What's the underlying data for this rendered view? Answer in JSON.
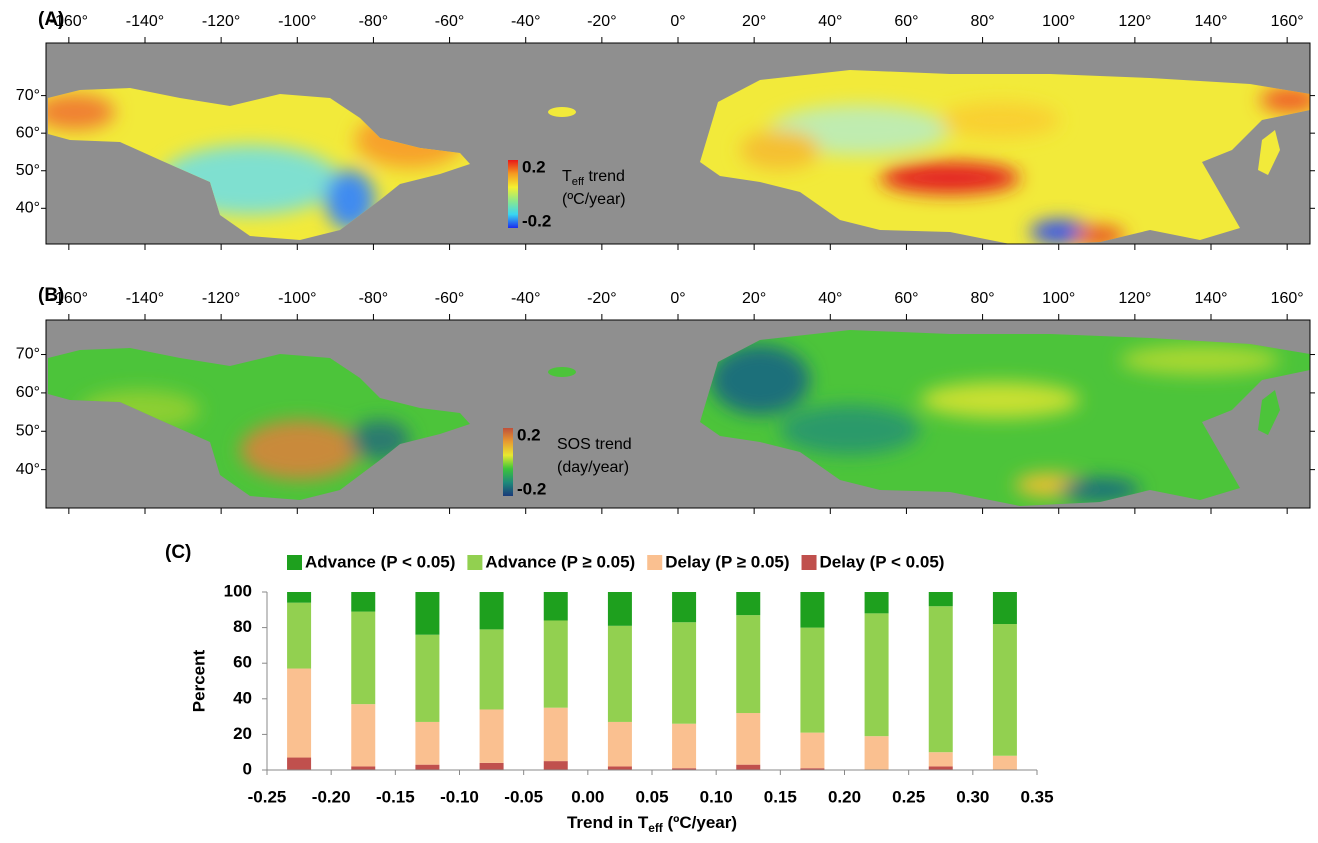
{
  "chart_data": [
    {
      "type": "map",
      "panel_label": "(A)",
      "xlim": [
        -166,
        166
      ],
      "ylim": [
        30.5,
        84
      ],
      "xticks": [
        {
          "value": -160,
          "label": "-160°"
        },
        {
          "value": -140,
          "label": "-140°"
        },
        {
          "value": -120,
          "label": "-120°"
        },
        {
          "value": -100,
          "label": "-100°"
        },
        {
          "value": -80,
          "label": "-80°"
        },
        {
          "value": -60,
          "label": "-60°"
        },
        {
          "value": -40,
          "label": "-40°"
        },
        {
          "value": -20,
          "label": "-20°"
        },
        {
          "value": 0,
          "label": "0°"
        },
        {
          "value": 20,
          "label": "20°"
        },
        {
          "value": 40,
          "label": "40°"
        },
        {
          "value": 60,
          "label": "60°"
        },
        {
          "value": 80,
          "label": "80°"
        },
        {
          "value": 100,
          "label": "100°"
        },
        {
          "value": 120,
          "label": "120°"
        },
        {
          "value": 140,
          "label": "140°"
        },
        {
          "value": 160,
          "label": "160°"
        }
      ],
      "yticks": [
        {
          "value": 40,
          "label": "40°"
        },
        {
          "value": 50,
          "label": "50°"
        },
        {
          "value": 60,
          "label": "60°"
        },
        {
          "value": 70,
          "label": "70°"
        }
      ],
      "colorbar": {
        "title": {
          "main": "T",
          "sub": "eff",
          "rest": " trend"
        },
        "unit": "(ºC/year)",
        "lim": [
          -0.2,
          0.2
        ],
        "ticks": [
          -0.2,
          0.2
        ],
        "colors": [
          "#1b2cf0",
          "#39d6f2",
          "#8de88a",
          "#f5f030",
          "#f59a20",
          "#e81818"
        ]
      }
    },
    {
      "type": "map",
      "panel_label": "(B)",
      "xlim": [
        -166,
        166
      ],
      "ylim": [
        30,
        79
      ],
      "xticks": [
        {
          "value": -160,
          "label": "-160°"
        },
        {
          "value": -140,
          "label": "-140°"
        },
        {
          "value": -120,
          "label": "-120°"
        },
        {
          "value": -100,
          "label": "-100°"
        },
        {
          "value": -80,
          "label": "-80°"
        },
        {
          "value": -60,
          "label": "-60°"
        },
        {
          "value": -40,
          "label": "-40°"
        },
        {
          "value": -20,
          "label": "-20°"
        },
        {
          "value": 0,
          "label": "0°"
        },
        {
          "value": 20,
          "label": "20°"
        },
        {
          "value": 40,
          "label": "40°"
        },
        {
          "value": 60,
          "label": "60°"
        },
        {
          "value": 80,
          "label": "80°"
        },
        {
          "value": 100,
          "label": "100°"
        },
        {
          "value": 120,
          "label": "120°"
        },
        {
          "value": 140,
          "label": "140°"
        },
        {
          "value": 160,
          "label": "160°"
        }
      ],
      "yticks": [
        {
          "value": 40,
          "label": "40°"
        },
        {
          "value": 50,
          "label": "50°"
        },
        {
          "value": 60,
          "label": "60°"
        },
        {
          "value": 70,
          "label": "70°"
        }
      ],
      "colorbar": {
        "title": "SOS trend",
        "unit": "(day/year)",
        "lim": [
          -0.2,
          0.2
        ],
        "ticks": [
          -0.2,
          0.2
        ],
        "colors": [
          "#1a3a7a",
          "#1f8a7a",
          "#3cc43a",
          "#e8e830",
          "#e89a30",
          "#c0503a"
        ]
      }
    },
    {
      "type": "bar",
      "stacked": true,
      "panel_label": "(C)",
      "x": [
        -0.225,
        -0.175,
        -0.125,
        -0.075,
        -0.025,
        0.025,
        0.075,
        0.125,
        0.175,
        0.225,
        0.275,
        0.325
      ],
      "series": [
        {
          "name": "Advance (P < 0.05)",
          "color": "#1ea01e",
          "values": [
            6,
            11,
            24,
            21,
            16,
            19,
            17,
            13,
            20,
            12,
            8,
            18
          ]
        },
        {
          "name": "Advance (P ≥ 0.05)",
          "color": "#92d050",
          "values": [
            37,
            52,
            49,
            45,
            49,
            54,
            57,
            55,
            59,
            69,
            82,
            74
          ]
        },
        {
          "name": "Delay (P ≥ 0.05)",
          "color": "#fac090",
          "values": [
            50,
            35,
            24,
            30,
            30,
            25,
            25,
            29,
            20,
            19,
            8,
            8
          ]
        },
        {
          "name": "Delay (P < 0.05)",
          "color": "#c0504d",
          "values": [
            7,
            2,
            3,
            4,
            5,
            2,
            1,
            3,
            1,
            0,
            2,
            0
          ]
        }
      ],
      "xlim": [
        -0.25,
        0.35
      ],
      "xticks": [
        {
          "value": -0.25,
          "label": "-0.25"
        },
        {
          "value": -0.2,
          "label": "-0.20"
        },
        {
          "value": -0.15,
          "label": "-0.15"
        },
        {
          "value": -0.1,
          "label": "-0.10"
        },
        {
          "value": -0.05,
          "label": "-0.05"
        },
        {
          "value": 0,
          "label": "0.00"
        },
        {
          "value": 0.05,
          "label": "0.05"
        },
        {
          "value": 0.1,
          "label": "0.10"
        },
        {
          "value": 0.15,
          "label": "0.15"
        },
        {
          "value": 0.2,
          "label": "0.20"
        },
        {
          "value": 0.25,
          "label": "0.25"
        },
        {
          "value": 0.3,
          "label": "0.30"
        },
        {
          "value": 0.35,
          "label": "0.35"
        }
      ],
      "ylim": [
        0,
        100
      ],
      "yticks": [
        0,
        20,
        40,
        60,
        80,
        100
      ],
      "y_label": "Percent",
      "x_label": {
        "main": "Trend in T",
        "sub": "eff",
        "rest": " (ºC/year)"
      }
    }
  ]
}
